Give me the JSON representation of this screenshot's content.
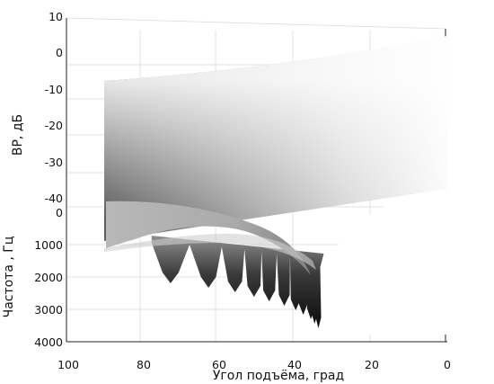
{
  "chart_data": {
    "type": "surface",
    "title": "",
    "subtitle": "",
    "xlabel": "Угол подъёма, град",
    "ylabel": "Частота , Гц",
    "zlabel": "ВР, дБ",
    "x_ticks": [
      "100",
      "80",
      "60",
      "40",
      "20",
      "0"
    ],
    "y_ticks": [
      "0",
      "1000",
      "2000",
      "3000",
      "4000"
    ],
    "z_ticks": [
      "10",
      "0",
      "-10",
      "-20",
      "-30",
      "-40"
    ],
    "xlim": [
      100,
      0
    ],
    "ylim": [
      0,
      4000
    ],
    "zlim": [
      -40,
      10
    ],
    "x_range": [
      90,
      0
    ],
    "y_range": [
      0,
      4000
    ],
    "grid": true,
    "colormap": "gray",
    "surface_description_values": {
      "notch_elevations_deg": [
        73,
        63,
        56,
        51,
        47,
        43,
        40,
        38,
        36,
        35,
        34
      ],
      "notch_depth_db": -40,
      "max_level_db": 0
    }
  }
}
